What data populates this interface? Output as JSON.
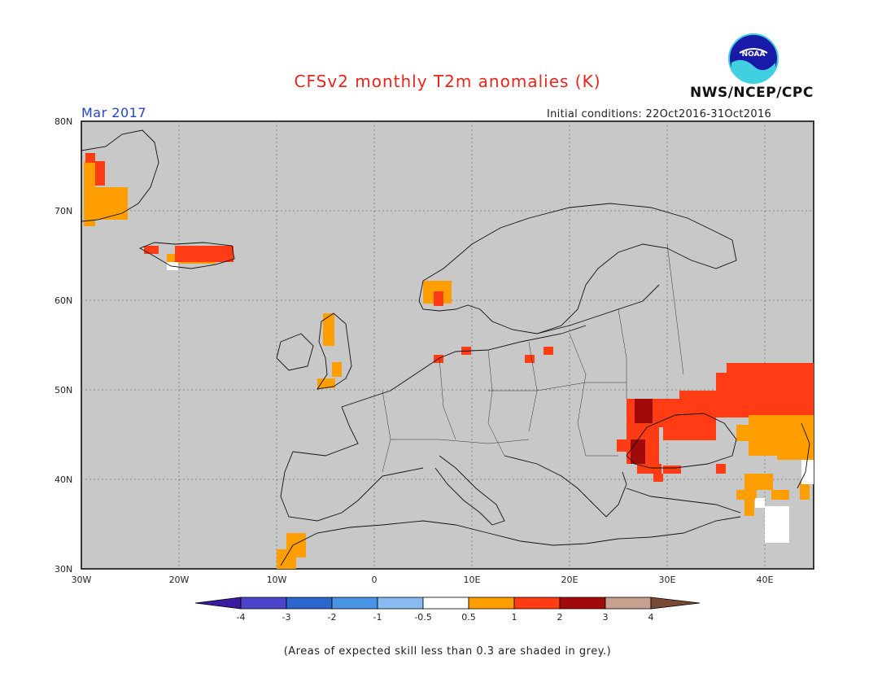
{
  "header": {
    "title": "CFSv2 monthly T2m anomalies (K)",
    "org": "NWS/NCEP/CPC",
    "month": "Mar 2017",
    "initial_conditions": "Initial conditions: 22Oct2016-31Oct2016",
    "logo_text": "NOAA"
  },
  "map": {
    "lat_labels": [
      "80N",
      "70N",
      "60N",
      "50N",
      "40N",
      "30N"
    ],
    "lon_labels": [
      "30W",
      "20W",
      "10W",
      "0",
      "10E",
      "20E",
      "30E",
      "40E"
    ],
    "background_color": "#c8c8c8"
  },
  "colorbar": {
    "labels": [
      "-4",
      "-3",
      "-2",
      "-1",
      "-0.5",
      "0.5",
      "1",
      "2",
      "3",
      "4"
    ],
    "colors": [
      "#3a1a9e",
      "#4a44c8",
      "#2a66cc",
      "#4a94e6",
      "#88bcf0",
      "#ffffff",
      "#ff9e00",
      "#ff3c14",
      "#a00a0a",
      "#c8a090",
      "#7a4a36"
    ]
  },
  "footnote": "(Areas of expected skill less than 0.3 are shaded in grey.)"
}
